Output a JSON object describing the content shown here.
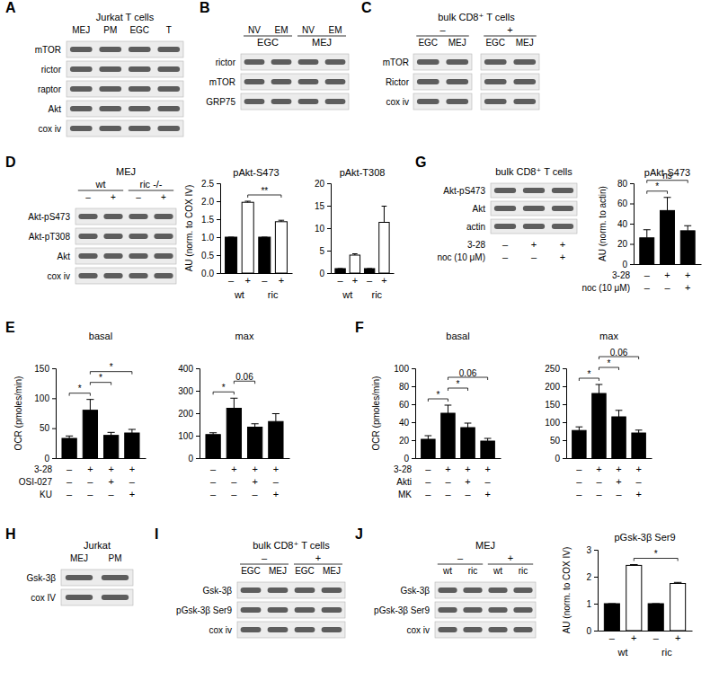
{
  "panel_labels": [
    "A",
    "B",
    "C",
    "D",
    "E",
    "F",
    "G",
    "H",
    "I",
    "J"
  ],
  "blots": [
    {
      "title": "Jurkat T cells",
      "lanes": [
        "MEJ",
        "PM",
        "EGC",
        "T"
      ],
      "rows": [
        "mTOR",
        "rictor",
        "raptor",
        "Akt",
        "cox iv"
      ]
    },
    {
      "lanes": [
        "NV",
        "EM",
        "NV",
        "EM"
      ],
      "groups": [
        "EGC",
        "MEJ"
      ],
      "rows": [
        "rictor",
        "mTOR",
        "GRP75"
      ]
    },
    {
      "title": "bulk CD8⁺ T cells",
      "groups": [
        "–",
        "+"
      ],
      "lanes": [
        "EGC",
        "MEJ",
        "EGC",
        "MEJ"
      ],
      "rows": [
        "mTOR",
        "Rictor",
        "cox iv"
      ]
    },
    {
      "title": "MEJ",
      "groups": [
        "wt",
        "ric -/-"
      ],
      "lanes": [
        "–",
        "+",
        "–",
        "+"
      ],
      "rows": [
        "Akt-pS473",
        "Akt-pT308",
        "Akt",
        "cox iv"
      ]
    },
    {
      "title": "bulk CD8⁺ T cells",
      "rows": [
        "Akt-pS473",
        "Akt",
        "actin"
      ],
      "conditions": [
        {
          "label": "3-28",
          "values": [
            "–",
            "+",
            "+"
          ]
        },
        {
          "label": "noc (10 μM)",
          "values": [
            "–",
            "–",
            "+"
          ]
        }
      ]
    },
    {
      "title": "Jurkat",
      "lanes": [
        "MEJ",
        "PM"
      ],
      "rows": [
        "Gsk-3β",
        "cox IV"
      ]
    },
    {
      "title": "bulk CD8⁺ T cells",
      "groups": [
        "–",
        "+"
      ],
      "lanes": [
        "EGC",
        "MEJ",
        "EGC",
        "MEJ"
      ],
      "rows": [
        "Gsk-3β",
        "pGsk-3β Ser9",
        "cox iv"
      ]
    },
    {
      "title": "MEJ",
      "groups": [
        "–",
        "+"
      ],
      "lanes": [
        "wt",
        "ric",
        "wt",
        "ric"
      ],
      "rows": [
        "Gsk-3β",
        "pGsk-3β Ser9",
        "cox iv"
      ]
    }
  ],
  "chart_data": [
    {
      "type": "bar",
      "title": "pAkt-S473",
      "y_label": "AU (norm. to COX IV)",
      "categories": [
        "–",
        "+",
        "–",
        "+"
      ],
      "groups": [
        "wt",
        "ric"
      ],
      "values": [
        1,
        1.97,
        1,
        1.43
      ],
      "errors": [
        0,
        0.03,
        0,
        0.04
      ],
      "colors": [
        "#000000",
        "#ffffff",
        "#000000",
        "#ffffff"
      ],
      "ylim": [
        0,
        2.5
      ],
      "yticks": [
        {
          "value": 0,
          "label": "0.0"
        },
        0.5,
        {
          "value": 1,
          "label": "1.0"
        },
        1.5,
        {
          "value": 2,
          "label": "2.0"
        },
        2.5
      ],
      "significance": [
        {
          "from": 1,
          "to": 3,
          "label": "**"
        }
      ]
    },
    {
      "type": "bar",
      "title": "pAkt-T308",
      "categories": [
        "–",
        "+",
        "–",
        "+"
      ],
      "groups": [
        "wt",
        "ric"
      ],
      "values": [
        1,
        4,
        1,
        11.3
      ],
      "errors": [
        0,
        0.3,
        0,
        3.6
      ],
      "colors": [
        "#000000",
        "#ffffff",
        "#000000",
        "#ffffff"
      ],
      "ylim": [
        0,
        20
      ],
      "yticks": [
        0,
        5,
        10,
        15,
        20
      ]
    },
    {
      "type": "bar",
      "title": "pAkt-S473",
      "y_label": "AU (norm. to actin)",
      "categories": [
        null,
        null,
        null
      ],
      "values": [
        26,
        53,
        33
      ],
      "errors": [
        8,
        13,
        5
      ],
      "colors": [
        "#000000",
        "#000000",
        "#000000"
      ],
      "ylim": [
        0,
        80
      ],
      "yticks": [
        0,
        20,
        40,
        60,
        80
      ],
      "condition_rows": [
        {
          "label": "3-28",
          "values": [
            "–",
            "+",
            "+"
          ]
        },
        {
          "label": "noc (10 μM)",
          "values": [
            "–",
            "–",
            "+"
          ]
        }
      ],
      "significance": [
        {
          "from": 0,
          "to": 1,
          "label": "*"
        },
        {
          "from": 0,
          "to": 2,
          "label": "ns"
        }
      ]
    },
    {
      "type": "bar",
      "title": "basal",
      "y_label": "OCR (pmoles/min)",
      "categories": [
        null,
        null,
        null,
        null
      ],
      "values": [
        33,
        80,
        38,
        42
      ],
      "errors": [
        4,
        18,
        5,
        6
      ],
      "colors": [
        "#000000",
        "#000000",
        "#000000",
        "#000000"
      ],
      "ylim": [
        0,
        150
      ],
      "yticks": [
        0,
        50,
        100,
        150
      ],
      "condition_rows": [
        {
          "label": "3-28",
          "values": [
            "–",
            "+",
            "+",
            "+"
          ]
        },
        {
          "label": "OSI-027",
          "values": [
            "–",
            "–",
            "+",
            "–"
          ]
        },
        {
          "label": "KU",
          "values": [
            "–",
            "–",
            "–",
            "+"
          ]
        }
      ],
      "significance": [
        {
          "from": 0,
          "to": 1,
          "label": "*"
        },
        {
          "from": 1,
          "to": 2,
          "label": "*"
        },
        {
          "from": 1,
          "to": 3,
          "label": "*"
        }
      ]
    },
    {
      "type": "bar",
      "title": "max",
      "categories": [
        null,
        null,
        null,
        null
      ],
      "values": [
        105,
        222,
        138,
        163
      ],
      "errors": [
        8,
        45,
        15,
        35
      ],
      "colors": [
        "#000000",
        "#000000",
        "#000000",
        "#000000"
      ],
      "ylim": [
        0,
        400
      ],
      "yticks": [
        0,
        100,
        200,
        300,
        400
      ],
      "condition_rows": [
        {
          "values": [
            "–",
            "+",
            "+",
            "+"
          ]
        },
        {
          "values": [
            "–",
            "–",
            "+",
            "–"
          ]
        },
        {
          "values": [
            "–",
            "–",
            "–",
            "+"
          ]
        }
      ],
      "significance": [
        {
          "from": 0,
          "to": 1,
          "label": "*"
        },
        {
          "from": 1,
          "to": 2,
          "label": "0.06"
        }
      ]
    },
    {
      "type": "bar",
      "title": "basal",
      "y_label": "OCR (pmoles/min)",
      "categories": [
        null,
        null,
        null,
        null
      ],
      "values": [
        21,
        50,
        34,
        19
      ],
      "errors": [
        4,
        9,
        5,
        3
      ],
      "colors": [
        "#000000",
        "#000000",
        "#000000",
        "#000000"
      ],
      "ylim": [
        0,
        100
      ],
      "yticks": [
        0,
        20,
        40,
        60,
        80,
        100
      ],
      "condition_rows": [
        {
          "label": "3-28",
          "values": [
            "–",
            "+",
            "+",
            "+"
          ]
        },
        {
          "label": "Akti",
          "values": [
            "–",
            "–",
            "+",
            "–"
          ]
        },
        {
          "label": "MK",
          "values": [
            "–",
            "–",
            "–",
            "+"
          ]
        }
      ],
      "significance": [
        {
          "from": 0,
          "to": 1,
          "label": "*"
        },
        {
          "from": 1,
          "to": 2,
          "label": "*"
        },
        {
          "from": 1,
          "to": 3,
          "label": "0.06"
        }
      ]
    },
    {
      "type": "bar",
      "title": "max",
      "categories": [
        null,
        null,
        null,
        null
      ],
      "values": [
        77,
        180,
        115,
        70
      ],
      "errors": [
        10,
        25,
        18,
        8
      ],
      "colors": [
        "#000000",
        "#000000",
        "#000000",
        "#000000"
      ],
      "ylim": [
        0,
        250
      ],
      "yticks": [
        0,
        50,
        100,
        150,
        200,
        250
      ],
      "condition_rows": [
        {
          "values": [
            "–",
            "+",
            "+",
            "+"
          ]
        },
        {
          "values": [
            "–",
            "–",
            "+",
            "–"
          ]
        },
        {
          "values": [
            "–",
            "–",
            "–",
            "+"
          ]
        }
      ],
      "significance": [
        {
          "from": 0,
          "to": 1,
          "label": "*"
        },
        {
          "from": 1,
          "to": 2,
          "label": "*"
        },
        {
          "from": 1,
          "to": 3,
          "label": "0.06"
        }
      ]
    },
    {
      "type": "bar",
      "title": "pGsk-3β Ser9",
      "y_label": "AU (norm. to COX IV)",
      "categories": [
        "–",
        "+",
        "–",
        "+"
      ],
      "groups": [
        "wt",
        "ric"
      ],
      "values": [
        1,
        2.42,
        1,
        1.75
      ],
      "errors": [
        0,
        0.03,
        0,
        0.04
      ],
      "colors": [
        "#000000",
        "#ffffff",
        "#000000",
        "#ffffff"
      ],
      "ylim": [
        0,
        3
      ],
      "yticks": [
        0,
        1,
        2,
        3
      ],
      "significance": [
        {
          "from": 1,
          "to": 3,
          "label": "*"
        }
      ]
    }
  ]
}
